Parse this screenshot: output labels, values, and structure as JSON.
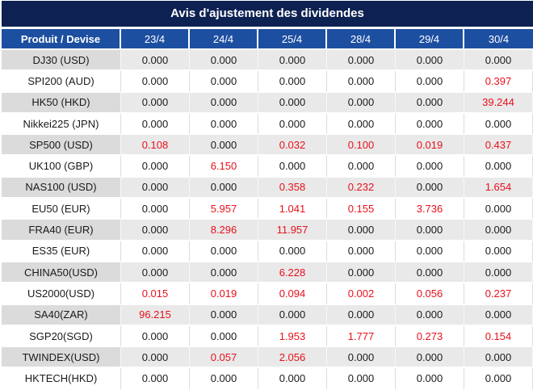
{
  "title": "Avis d'ajustement des dividendes",
  "table": {
    "header": {
      "product_label": "Produit / Devise",
      "dates": [
        "23/4",
        "24/4",
        "25/4",
        "28/4",
        "29/4",
        "30/4"
      ]
    },
    "rows": [
      {
        "product": "DJ30 (USD)",
        "values": [
          "0.000",
          "0.000",
          "0.000",
          "0.000",
          "0.000",
          "0.000"
        ],
        "red": [
          false,
          false,
          false,
          false,
          false,
          false
        ]
      },
      {
        "product": "SPI200 (AUD)",
        "values": [
          "0.000",
          "0.000",
          "0.000",
          "0.000",
          "0.000",
          "0.397"
        ],
        "red": [
          false,
          false,
          false,
          false,
          false,
          true
        ]
      },
      {
        "product": "HK50 (HKD)",
        "values": [
          "0.000",
          "0.000",
          "0.000",
          "0.000",
          "0.000",
          "39.244"
        ],
        "red": [
          false,
          false,
          false,
          false,
          false,
          true
        ]
      },
      {
        "product": "Nikkei225 (JPN)",
        "values": [
          "0.000",
          "0.000",
          "0.000",
          "0.000",
          "0.000",
          "0.000"
        ],
        "red": [
          false,
          false,
          false,
          false,
          false,
          false
        ]
      },
      {
        "product": "SP500 (USD)",
        "values": [
          "0.108",
          "0.000",
          "0.032",
          "0.100",
          "0.019",
          "0.437"
        ],
        "red": [
          true,
          false,
          true,
          true,
          true,
          true
        ]
      },
      {
        "product": "UK100 (GBP)",
        "values": [
          "0.000",
          "6.150",
          "0.000",
          "0.000",
          "0.000",
          "0.000"
        ],
        "red": [
          false,
          true,
          false,
          false,
          false,
          false
        ]
      },
      {
        "product": "NAS100 (USD)",
        "values": [
          "0.000",
          "0.000",
          "0.358",
          "0.232",
          "0.000",
          "1.654"
        ],
        "red": [
          false,
          false,
          true,
          true,
          false,
          true
        ]
      },
      {
        "product": "EU50 (EUR)",
        "values": [
          "0.000",
          "5.957",
          "1.041",
          "0.155",
          "3.736",
          "0.000"
        ],
        "red": [
          false,
          true,
          true,
          true,
          true,
          false
        ]
      },
      {
        "product": "FRA40 (EUR)",
        "values": [
          "0.000",
          "8.296",
          "11.957",
          "0.000",
          "0.000",
          "0.000"
        ],
        "red": [
          false,
          true,
          true,
          false,
          false,
          false
        ]
      },
      {
        "product": "ES35 (EUR)",
        "values": [
          "0.000",
          "0.000",
          "0.000",
          "0.000",
          "0.000",
          "0.000"
        ],
        "red": [
          false,
          false,
          false,
          false,
          false,
          false
        ]
      },
      {
        "product": "CHINA50(USD)",
        "values": [
          "0.000",
          "0.000",
          "6.228",
          "0.000",
          "0.000",
          "0.000"
        ],
        "red": [
          false,
          false,
          true,
          false,
          false,
          false
        ]
      },
      {
        "product": "US2000(USD)",
        "values": [
          "0.015",
          "0.019",
          "0.094",
          "0.002",
          "0.056",
          "0.237"
        ],
        "red": [
          true,
          true,
          true,
          true,
          true,
          true
        ]
      },
      {
        "product": "SA40(ZAR)",
        "values": [
          "96.215",
          "0.000",
          "0.000",
          "0.000",
          "0.000",
          "0.000"
        ],
        "red": [
          true,
          false,
          false,
          false,
          false,
          false
        ]
      },
      {
        "product": "SGP20(SGD)",
        "values": [
          "0.000",
          "0.000",
          "1.953",
          "1.777",
          "0.273",
          "0.154"
        ],
        "red": [
          false,
          false,
          true,
          true,
          true,
          true
        ]
      },
      {
        "product": "TWINDEX(USD)",
        "values": [
          "0.000",
          "0.057",
          "2.056",
          "0.000",
          "0.000",
          "0.000"
        ],
        "red": [
          false,
          true,
          true,
          false,
          false,
          false
        ]
      },
      {
        "product": "HKTECH(HKD)",
        "values": [
          "0.000",
          "0.000",
          "0.000",
          "0.000",
          "0.000",
          "0.000"
        ],
        "red": [
          false,
          false,
          false,
          false,
          false,
          false
        ]
      }
    ]
  },
  "colors": {
    "title_bar_bg": "#0d2152",
    "header_bg": "#1d4fa1",
    "row_alt_bg": "#e9e9e9",
    "row_alt_first_col_bg": "#dbdbdb",
    "row_white_bg": "#ffffff",
    "value_red": "#e8111c",
    "value_black": "#1a1a1a",
    "header_text": "#ffffff"
  }
}
